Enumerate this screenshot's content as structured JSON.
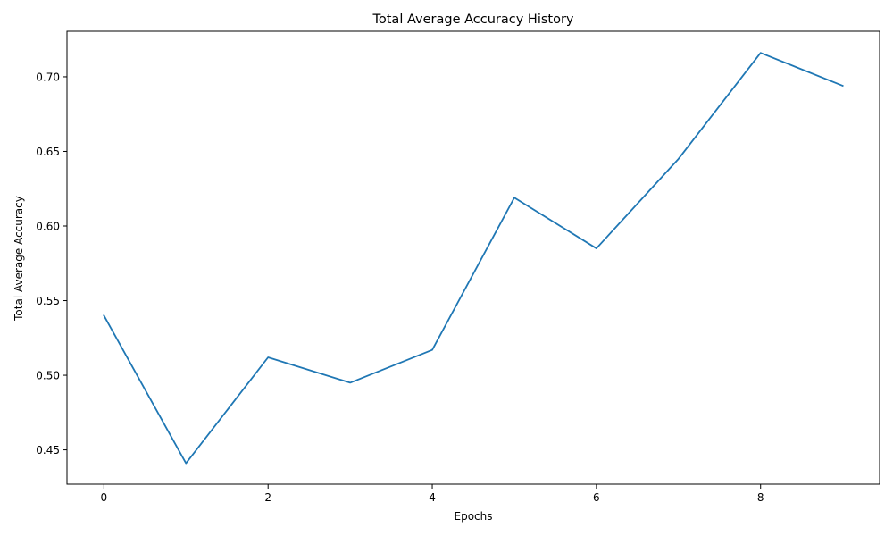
{
  "chart_data": {
    "type": "line",
    "title": "Total Average Accuracy History",
    "xlabel": "Epochs",
    "ylabel": "Total Average Accuracy",
    "xlim": [
      -0.45,
      9.45
    ],
    "ylim": [
      0.427,
      0.7305
    ],
    "xticks": [
      0,
      2,
      4,
      6,
      8
    ],
    "xtick_labels": [
      "0",
      "2",
      "4",
      "6",
      "8"
    ],
    "yticks": [
      0.45,
      0.5,
      0.55,
      0.6,
      0.65,
      0.7
    ],
    "ytick_labels": [
      "0.45",
      "0.50",
      "0.55",
      "0.60",
      "0.65",
      "0.70"
    ],
    "grid": false,
    "series": [
      {
        "color": "#1f77b4",
        "x": [
          0,
          1,
          2,
          3,
          4,
          5,
          6,
          7,
          8,
          9
        ],
        "values": [
          0.54,
          0.441,
          0.512,
          0.495,
          0.517,
          0.619,
          0.585,
          0.645,
          0.716,
          0.694
        ]
      }
    ]
  }
}
